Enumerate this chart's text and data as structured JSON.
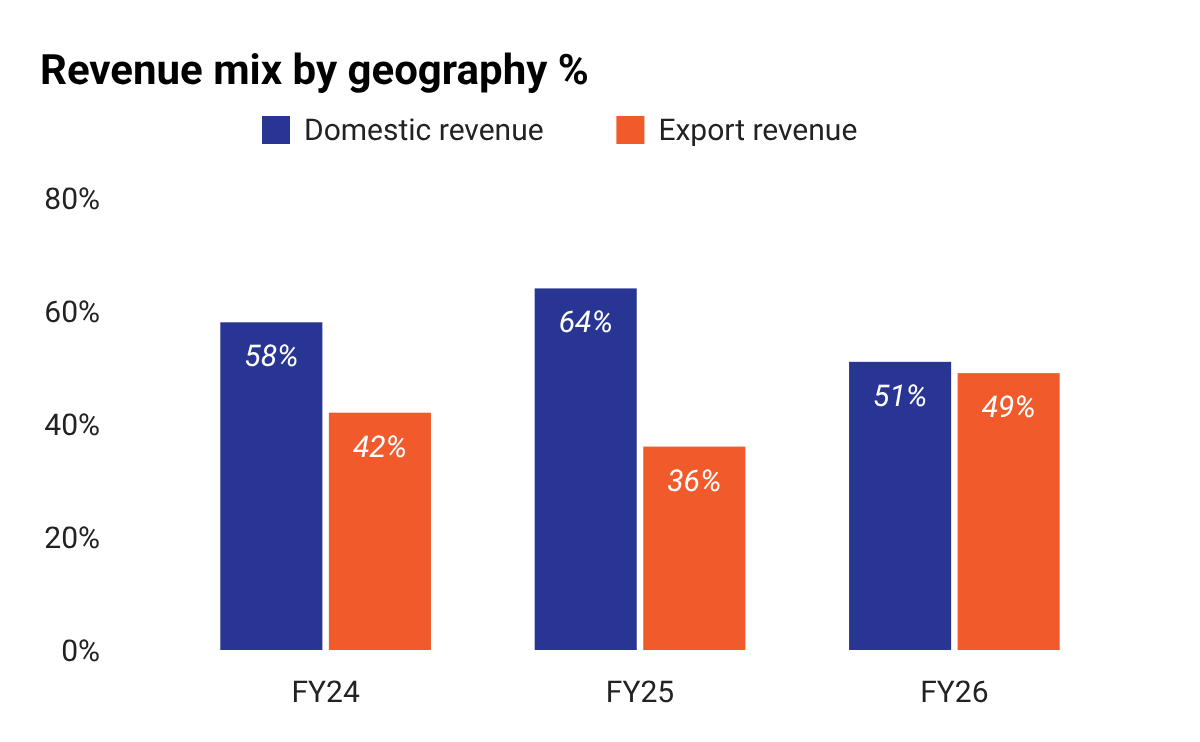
{
  "chart_data": {
    "type": "bar",
    "title": "Revenue mix by geography %",
    "categories": [
      "FY24",
      "FY25",
      "FY26"
    ],
    "series": [
      {
        "name": "Domestic revenue",
        "color": "#283593",
        "values": [
          58,
          64,
          51
        ],
        "value_labels": [
          "58%",
          "64%",
          "51%"
        ]
      },
      {
        "name": "Export revenue",
        "color": "#f15a2b",
        "values": [
          42,
          36,
          49
        ],
        "value_labels": [
          "42%",
          "36%",
          "49%"
        ]
      }
    ],
    "ylim": [
      0,
      80
    ],
    "yticks": [
      {
        "value": 0,
        "label": "0%"
      },
      {
        "value": 20,
        "label": "20%"
      },
      {
        "value": 40,
        "label": "40%"
      },
      {
        "value": 60,
        "label": "60%"
      },
      {
        "value": 80,
        "label": "80%"
      }
    ],
    "grid": false,
    "legend": "top"
  }
}
